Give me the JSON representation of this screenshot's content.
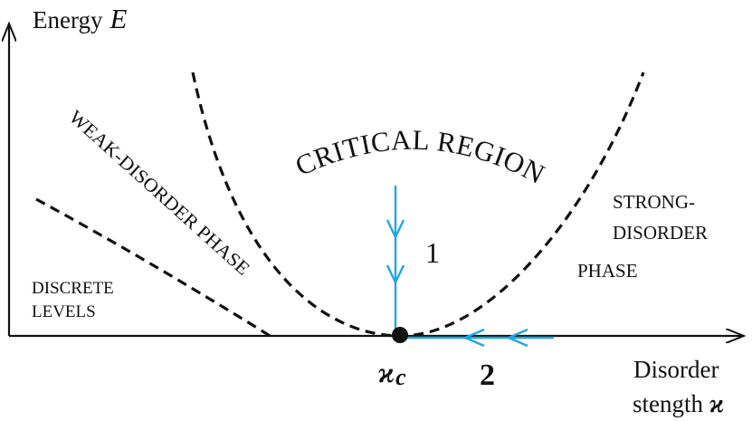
{
  "axes": {
    "y_label": "Energy",
    "y_symbol": "E",
    "x_label_line1": "Disorder",
    "x_label_line2": "stength",
    "x_symbol": "ϰ"
  },
  "regions": {
    "critical": "CRITICAL REGION",
    "weak": "WEAK-DISORDER PHASE",
    "strong_line1": "STRONG-",
    "strong_line2": "DISORDER",
    "strong_line3": "PHASE",
    "discrete_line1": "DISCRETE",
    "discrete_line2": "LEVELS"
  },
  "critical_point": {
    "symbol": "ϰ",
    "subscript": "c"
  },
  "flows": {
    "path1_label": "1",
    "path2_label": "2"
  },
  "colors": {
    "flow": "#22a6e0",
    "axis": "#111111",
    "boundary": "#111111"
  }
}
